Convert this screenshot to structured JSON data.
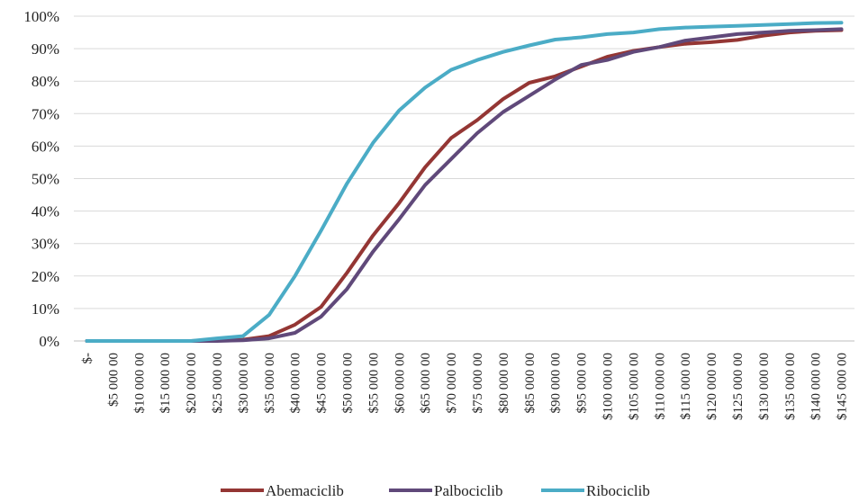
{
  "chart_data": {
    "type": "line",
    "title": "",
    "xlabel": "",
    "ylabel": "",
    "ylim": [
      0,
      1
    ],
    "grid": {
      "horizontal": true,
      "vertical": false
    },
    "legend_position": "bottom",
    "y_ticks": [
      "0%",
      "10%",
      "20%",
      "30%",
      "40%",
      "50%",
      "60%",
      "70%",
      "80%",
      "90%",
      "100%"
    ],
    "categories": [
      "$-",
      "$5 000 00",
      "$10 000 00",
      "$15 000 00",
      "$20 000 00",
      "$25 000 00",
      "$30 000 00",
      "$35 000 00",
      "$40 000 00",
      "$45 000 00",
      "$50 000 00",
      "$55 000 00",
      "$60 000 00",
      "$65 000 00",
      "$70 000 00",
      "$75 000 00",
      "$80 000 00",
      "$85 000 00",
      "$90 000 00",
      "$95 000 00",
      "$100 000 00",
      "$105 000 00",
      "$110 000 00",
      "$115 000 00",
      "$120 000 00",
      "$125 000 00",
      "$130 000 00",
      "$135 000 00",
      "$140 000 00",
      "$145 000 00"
    ],
    "series": [
      {
        "name": "Abemaciclib",
        "color": "#943634",
        "values": [
          0,
          0,
          0,
          0,
          0,
          0.002,
          0.004,
          0.015,
          0.05,
          0.105,
          0.21,
          0.325,
          0.425,
          0.535,
          0.625,
          0.68,
          0.745,
          0.795,
          0.815,
          0.845,
          0.875,
          0.893,
          0.905,
          0.915,
          0.92,
          0.927,
          0.94,
          0.95,
          0.955,
          0.957
        ]
      },
      {
        "name": "Palbociclib",
        "color": "#60497a",
        "values": [
          0,
          0,
          0,
          0,
          0,
          0,
          0.002,
          0.008,
          0.025,
          0.075,
          0.16,
          0.275,
          0.375,
          0.48,
          0.56,
          0.64,
          0.705,
          0.755,
          0.805,
          0.85,
          0.865,
          0.89,
          0.905,
          0.925,
          0.935,
          0.945,
          0.95,
          0.955,
          0.957,
          0.96
        ]
      },
      {
        "name": "Ribociclib",
        "color": "#4bacc6",
        "values": [
          0,
          0,
          0,
          0,
          0,
          0.008,
          0.015,
          0.08,
          0.2,
          0.34,
          0.485,
          0.61,
          0.71,
          0.78,
          0.835,
          0.865,
          0.89,
          0.91,
          0.928,
          0.935,
          0.945,
          0.95,
          0.96,
          0.965,
          0.968,
          0.97,
          0.973,
          0.976,
          0.979,
          0.98
        ]
      }
    ]
  }
}
